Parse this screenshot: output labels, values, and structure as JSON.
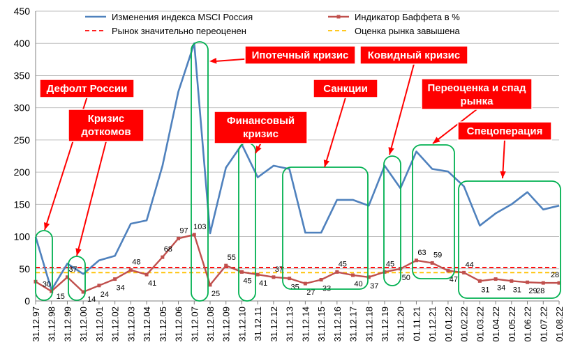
{
  "chart_data": {
    "type": "line",
    "x": [
      "31.12.97",
      "31.12.98",
      "31.12.99",
      "31.12.00",
      "31.12.01",
      "31.12.02",
      "31.12.03",
      "31.12.04",
      "31.12.05",
      "31.12.06",
      "31.12.07",
      "31.12.08",
      "31.12.09",
      "31.12.10",
      "31.12.11",
      "31.12.12",
      "31.12.13",
      "31.12.14",
      "31.12.15",
      "31.12.16",
      "31.12.17",
      "31.12.18",
      "31.12.19",
      "31.12.20",
      "01.11.21",
      "01.12.21",
      "01.01.22",
      "01.02.22",
      "01.03.22",
      "01.04.22",
      "01.05.22",
      "01.06.22",
      "01.07.22",
      "01.08.22"
    ],
    "ylim": [
      0,
      450
    ],
    "yticks": [
      "0",
      "50",
      "100",
      "150",
      "200",
      "250",
      "300",
      "350",
      "400",
      "450"
    ],
    "series": [
      {
        "name": "Изменения индекса MSCI Россия",
        "color": "#4f81bd",
        "values": [
          100,
          17,
          58,
          42,
          63,
          70,
          120,
          125,
          210,
          325,
          400,
          105,
          207,
          243,
          192,
          210,
          205,
          106,
          106,
          157,
          157,
          148,
          210,
          175,
          232,
          205,
          201,
          178,
          117,
          136,
          150,
          169,
          142,
          148
        ]
      },
      {
        "name": "Индикатор Баффета в %",
        "color": "#c0504d",
        "values": [
          30,
          15,
          37,
          14,
          24,
          34,
          48,
          41,
          68,
          97,
          103,
          25,
          55,
          45,
          41,
          37,
          35,
          27,
          33,
          45,
          40,
          37,
          45,
          50,
          63,
          59,
          47,
          44,
          31,
          34,
          31,
          29,
          28,
          28
        ],
        "labels": [
          "30",
          "15",
          "37",
          "14",
          "24",
          "34",
          "48",
          "41",
          "68",
          "97",
          "103",
          "25",
          "55",
          "45",
          "41",
          "37",
          "35",
          "27",
          "33",
          "45",
          "40",
          "37",
          "45",
          "50",
          "63",
          "59",
          "47",
          "44",
          "31",
          "34",
          "31",
          "29",
          "28",
          "28"
        ]
      }
    ],
    "reference_lines": [
      {
        "name": "Рынок значительно переоценен",
        "value": 52,
        "color": "#ff0000",
        "style": "dashed"
      },
      {
        "name": "Оценка рынка завышена",
        "value": 44,
        "color": "#ffc000",
        "style": "dashed"
      }
    ],
    "annotations": [
      {
        "text": "Дефолт России",
        "index": 0
      },
      {
        "text": "Кризис доткомов",
        "index": 3
      },
      {
        "text": "Ипотечный кризис",
        "index": 10
      },
      {
        "text": "Финансовый кризис",
        "index": 13
      },
      {
        "text": "Санкции",
        "index": 18
      },
      {
        "text": "Ковидный кризис",
        "index": 22
      },
      {
        "text": "Переоценка и спад рынка",
        "index": 25
      },
      {
        "text": "Спецоперация",
        "index": 30
      }
    ],
    "grid": "horizontal",
    "legend": "top"
  }
}
